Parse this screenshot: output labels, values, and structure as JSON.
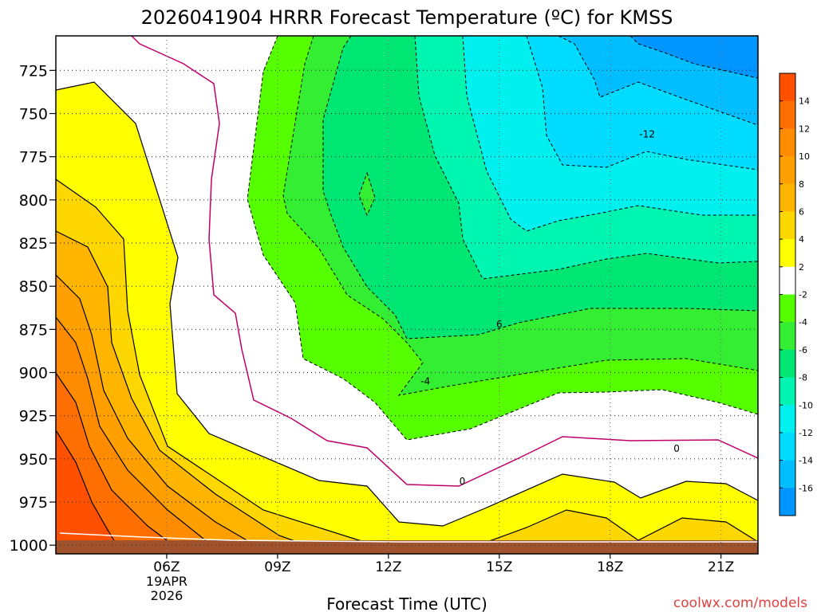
{
  "chart_data": {
    "type": "heatmap",
    "title": "2026041904 HRRR Forecast Temperature (ºC) for KMSS",
    "xlabel": "Forecast Time (UTC)",
    "ylabel": "",
    "credit": "coolwx.com/models",
    "x_ticks": [
      {
        "value": 6,
        "label": "06Z",
        "sub": [
          "19APR",
          "2026"
        ]
      },
      {
        "value": 9,
        "label": "09Z"
      },
      {
        "value": 12,
        "label": "12Z"
      },
      {
        "value": 15,
        "label": "15Z"
      },
      {
        "value": 18,
        "label": "18Z"
      },
      {
        "value": 21,
        "label": "21Z"
      }
    ],
    "xlim": [
      3,
      22
    ],
    "y_ticks": [
      725,
      750,
      775,
      800,
      825,
      850,
      875,
      900,
      925,
      950,
      975,
      1000
    ],
    "ylim": [
      1005,
      705
    ],
    "y_scale": "pressure (hPa), inverted",
    "grid": true,
    "colorbar": {
      "position": "right",
      "tick_labels": [
        "14",
        "12",
        "10",
        "8",
        "6",
        "4",
        "2",
        "-2",
        "-4",
        "-6",
        "-8",
        "-10",
        "-12",
        "-14",
        "-16"
      ],
      "levels": [
        {
          "lo": 14,
          "hi": 16,
          "color": "#ff5000"
        },
        {
          "lo": 12,
          "hi": 14,
          "color": "#ff6e00"
        },
        {
          "lo": 10,
          "hi": 12,
          "color": "#ff8c00"
        },
        {
          "lo": 8,
          "hi": 10,
          "color": "#ffa000"
        },
        {
          "lo": 6,
          "hi": 8,
          "color": "#ffb400"
        },
        {
          "lo": 4,
          "hi": 6,
          "color": "#ffd700"
        },
        {
          "lo": 2,
          "hi": 4,
          "color": "#ffff00"
        },
        {
          "lo": -2,
          "hi": 2,
          "color": "#ffffff"
        },
        {
          "lo": -4,
          "hi": -2,
          "color": "#55ff00"
        },
        {
          "lo": -6,
          "hi": -4,
          "color": "#33ee33"
        },
        {
          "lo": -8,
          "hi": -6,
          "color": "#00e673"
        },
        {
          "lo": -10,
          "hi": -8,
          "color": "#00f5b0"
        },
        {
          "lo": -12,
          "hi": -10,
          "color": "#00f0f0"
        },
        {
          "lo": -14,
          "hi": -12,
          "color": "#00dcff"
        },
        {
          "lo": -16,
          "hi": -14,
          "color": "#00beff"
        },
        {
          "lo": -18,
          "hi": -16,
          "color": "#0096ff"
        }
      ]
    },
    "contour_labels": [
      {
        "text": "-12",
        "x": 19.0,
        "p": 762
      },
      {
        "text": "6",
        "x": 15.0,
        "p": 872
      },
      {
        "text": "-4",
        "x": 13.0,
        "p": 905
      },
      {
        "text": "0",
        "x": 19.8,
        "p": 944
      },
      {
        "text": "0",
        "x": 14.0,
        "p": 963
      }
    ],
    "ground_color": "#a0522d"
  }
}
